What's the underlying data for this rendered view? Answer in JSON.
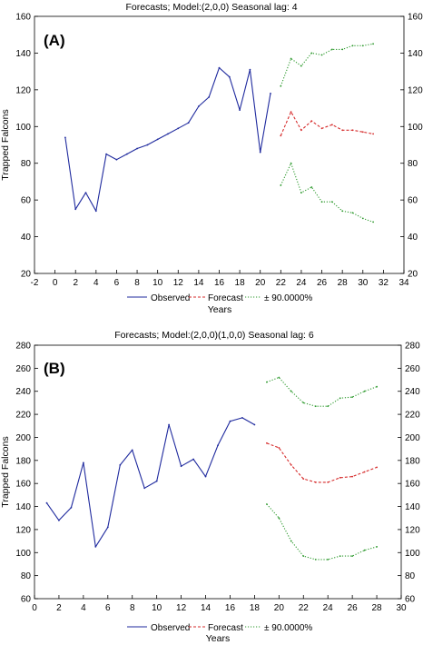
{
  "chart_data": [
    {
      "panel_label": "(A)",
      "type": "line",
      "title": "Forecasts; Model:(2,0,0) Seasonal lag: 4",
      "xlabel": "Years",
      "ylabel": "Trapped Falcons",
      "xlim": [
        -2,
        34
      ],
      "ylim": [
        20,
        160
      ],
      "xticks": [
        -2,
        0,
        2,
        4,
        6,
        8,
        10,
        12,
        14,
        16,
        18,
        20,
        22,
        24,
        26,
        28,
        30,
        32,
        34
      ],
      "yticks": [
        20,
        40,
        60,
        80,
        100,
        120,
        140,
        160
      ],
      "right_axis": true,
      "grid": false,
      "legend_position": "bottom",
      "series": [
        {
          "name": "Observed",
          "style": "solid",
          "color": "#1f2a9e",
          "x": [
            1,
            2,
            3,
            4,
            5,
            6,
            7,
            8,
            9,
            10,
            11,
            12,
            13,
            14,
            15,
            16,
            17,
            18,
            19,
            20,
            21
          ],
          "y": [
            94,
            55,
            64,
            54,
            85,
            82,
            85,
            88,
            90,
            93,
            96,
            99,
            102,
            111,
            116,
            132,
            127,
            109,
            131,
            86,
            118
          ]
        },
        {
          "name": "Forecast",
          "style": "dashed",
          "color": "#d62c2c",
          "x": [
            22,
            23,
            24,
            25,
            26,
            27,
            28,
            29,
            30,
            31
          ],
          "y": [
            95,
            108,
            98,
            103,
            99,
            101,
            98,
            98,
            97,
            96
          ]
        },
        {
          "name": "± 90.0000%",
          "style": "dotted",
          "color": "#2e9a2e",
          "x": [
            22,
            23,
            24,
            25,
            26,
            27,
            28,
            29,
            30,
            31
          ],
          "y": [
            122,
            137,
            133,
            140,
            139,
            142,
            142,
            144,
            144,
            145
          ]
        },
        {
          "name": "",
          "style": "dotted",
          "color": "#2e9a2e",
          "x": [
            22,
            23,
            24,
            25,
            26,
            27,
            28,
            29,
            30,
            31
          ],
          "y": [
            68,
            80,
            64,
            67,
            59,
            59,
            54,
            53,
            50,
            48
          ]
        }
      ]
    },
    {
      "panel_label": "(B)",
      "type": "line",
      "title": "Forecasts; Model:(2,0,0)(1,0,0) Seasonal lag: 6",
      "xlabel": "Years",
      "ylabel": "Trapped Falcons",
      "xlim": [
        0,
        30
      ],
      "ylim": [
        60,
        280
      ],
      "xticks": [
        0,
        2,
        4,
        6,
        8,
        10,
        12,
        14,
        16,
        18,
        20,
        22,
        24,
        26,
        28,
        30
      ],
      "yticks": [
        60,
        80,
        100,
        120,
        140,
        160,
        180,
        200,
        220,
        240,
        260,
        280
      ],
      "right_axis": true,
      "grid": false,
      "legend_position": "bottom",
      "series": [
        {
          "name": "Observed",
          "style": "solid",
          "color": "#1f2a9e",
          "x": [
            1,
            2,
            3,
            4,
            5,
            6,
            7,
            8,
            9,
            10,
            11,
            12,
            13,
            14,
            15,
            16,
            17,
            18
          ],
          "y": [
            143,
            128,
            139,
            178,
            105,
            122,
            176,
            189,
            156,
            162,
            211,
            175,
            181,
            166,
            193,
            214,
            217,
            211
          ]
        },
        {
          "name": "Forecast",
          "style": "dashed",
          "color": "#d62c2c",
          "x": [
            19,
            20,
            21,
            22,
            23,
            24,
            25,
            26,
            27,
            28
          ],
          "y": [
            195,
            191,
            176,
            164,
            161,
            161,
            165,
            166,
            170,
            174
          ]
        },
        {
          "name": "± 90.0000%",
          "style": "dotted",
          "color": "#2e9a2e",
          "x": [
            19,
            20,
            21,
            22,
            23,
            24,
            25,
            26,
            27,
            28
          ],
          "y": [
            248,
            252,
            240,
            230,
            227,
            227,
            234,
            235,
            240,
            244
          ]
        },
        {
          "name": "",
          "style": "dotted",
          "color": "#2e9a2e",
          "x": [
            19,
            20,
            21,
            22,
            23,
            24,
            25,
            26,
            27,
            28
          ],
          "y": [
            142,
            130,
            110,
            97,
            94,
            94,
            97,
            97,
            102,
            105
          ]
        }
      ]
    }
  ]
}
